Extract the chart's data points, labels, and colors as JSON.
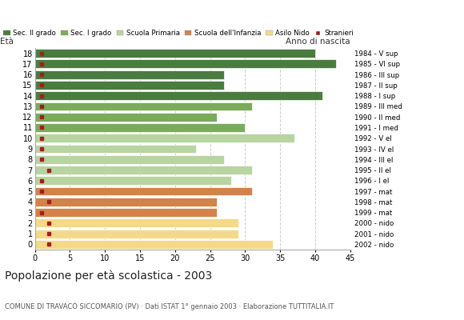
{
  "ages": [
    18,
    17,
    16,
    15,
    14,
    13,
    12,
    11,
    10,
    9,
    8,
    7,
    6,
    5,
    4,
    3,
    2,
    1,
    0
  ],
  "years": [
    "1984 - V sup",
    "1985 - VI sup",
    "1986 - III sup",
    "1987 - II sup",
    "1988 - I sup",
    "1989 - III med",
    "1990 - II med",
    "1991 - I med",
    "1992 - V el",
    "1993 - IV el",
    "1994 - III el",
    "1995 - II el",
    "1996 - I el",
    "1997 - mat",
    "1998 - mat",
    "1999 - mat",
    "2000 - nido",
    "2001 - nido",
    "2002 - nido"
  ],
  "values": [
    40,
    43,
    27,
    27,
    41,
    31,
    26,
    30,
    37,
    23,
    27,
    31,
    28,
    31,
    26,
    26,
    29,
    29,
    34
  ],
  "stranieri": [
    1,
    1,
    1,
    1,
    1,
    1,
    1,
    1,
    1,
    1,
    1,
    2,
    1,
    1,
    2,
    1,
    2,
    2,
    2
  ],
  "bar_colors": [
    "#4a7c3f",
    "#4a7c3f",
    "#4a7c3f",
    "#4a7c3f",
    "#4a7c3f",
    "#7aab5a",
    "#7aab5a",
    "#7aab5a",
    "#b8d4a0",
    "#b8d4a0",
    "#b8d4a0",
    "#b8d4a0",
    "#b8d4a0",
    "#d2834a",
    "#d2834a",
    "#d2834a",
    "#f5d98a",
    "#f5d98a",
    "#f5d98a"
  ],
  "legend_labels": [
    "Sec. II grado",
    "Sec. I grado",
    "Scuola Primaria",
    "Scuola dell'Infanzia",
    "Asilo Nido",
    "Stranieri"
  ],
  "legend_colors": [
    "#4a7c3f",
    "#7aab5a",
    "#b8d4a0",
    "#d2834a",
    "#f5d98a",
    "#a02020"
  ],
  "title": "Popolazione per età scolastica - 2003",
  "subtitle": "COMUNE DI TRAVACÒ SICCOMARIO (PV) · Dati ISTAT 1° gennaio 2003 · Elaborazione TUTTITALIA.IT",
  "label_eta": "Età",
  "label_anno": "Anno di nascita",
  "xlim": [
    0,
    45
  ],
  "xticks": [
    0,
    5,
    10,
    15,
    20,
    25,
    30,
    35,
    40,
    45
  ],
  "stranieri_color": "#a02020",
  "bg_color": "#ffffff",
  "grid_color": "#cccccc",
  "bar_height": 0.82
}
